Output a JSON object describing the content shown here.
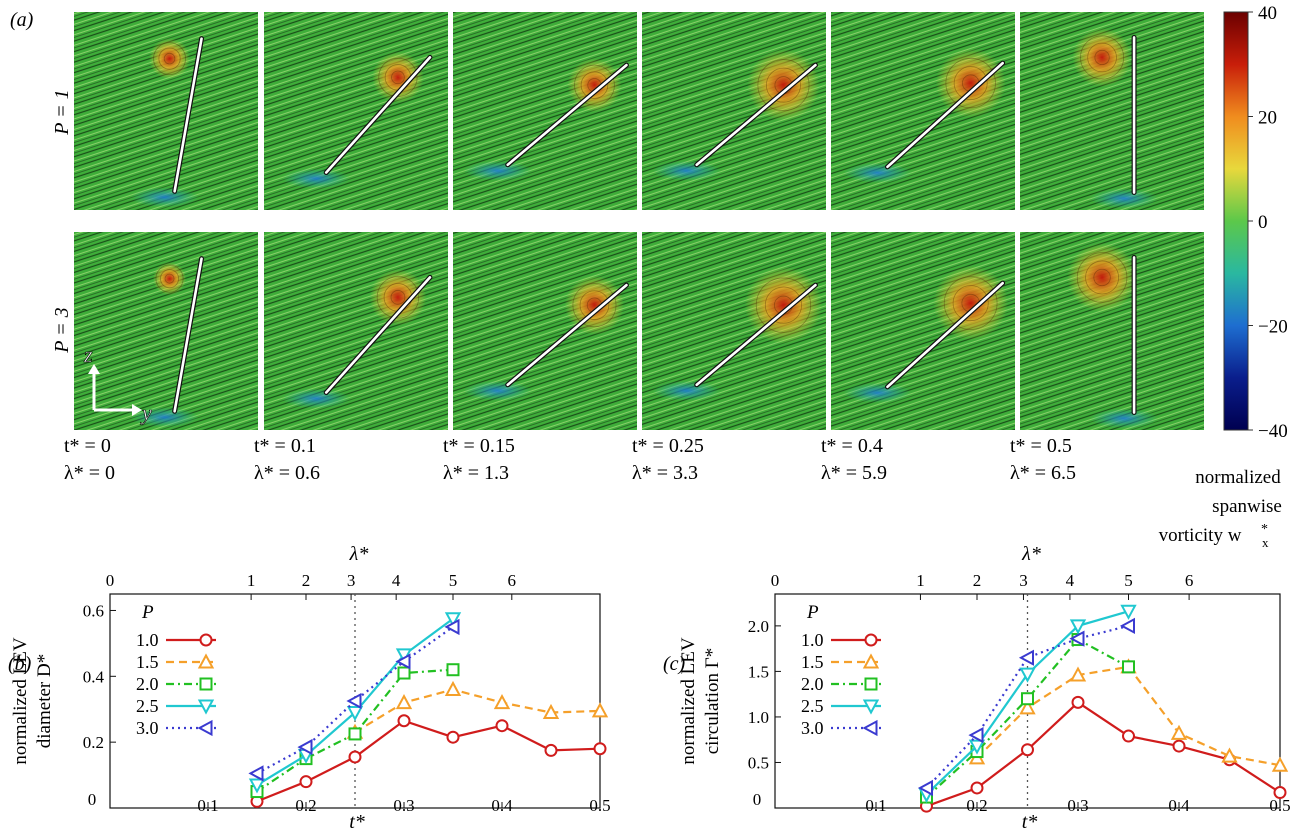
{
  "panel_a": {
    "label": "(a)",
    "row_labels": [
      "P = 1",
      "P = 3"
    ],
    "columns": [
      {
        "t": "t* = 0",
        "lambda": "λ* = 0",
        "angle_deg": 80,
        "p1_vortex": 0.25,
        "p3_vortex": 0.1
      },
      {
        "t": "t* = 0.1",
        "lambda": "λ* = 0.6",
        "angle_deg": 48,
        "p1_vortex": 0.45,
        "p3_vortex": 0.55
      },
      {
        "t": "t* = 0.15",
        "lambda": "λ* = 1.3",
        "angle_deg": 40,
        "p1_vortex": 0.5,
        "p3_vortex": 0.6
      },
      {
        "t": "t* = 0.25",
        "lambda": "λ* = 3.3",
        "angle_deg": 40,
        "p1_vortex": 0.85,
        "p3_vortex": 0.95
      },
      {
        "t": "t* = 0.4",
        "lambda": "λ* = 5.9",
        "angle_deg": 42,
        "p1_vortex": 0.8,
        "p3_vortex": 0.9
      },
      {
        "t": "t* = 0.5",
        "lambda": "λ* = 6.5",
        "angle_deg": 90,
        "p1_vortex": 0.6,
        "p3_vortex": 0.8
      }
    ],
    "axis_z": "z",
    "axis_y": "y",
    "colorbar": {
      "ticks": [
        40,
        20,
        0,
        -20,
        -40
      ],
      "tick_labels": [
        "40",
        "20",
        "0",
        "−20",
        "−40"
      ],
      "label_lines": [
        "normalized",
        "spanwise",
        "vorticity w",
        "x",
        "*"
      ],
      "colors": [
        "#6b0000",
        "#c81e0a",
        "#f08c1e",
        "#e8d83c",
        "#5cc84a",
        "#2ab8a0",
        "#1e6ed0",
        "#0a1e8c",
        "#000050"
      ]
    }
  },
  "chart_data": [
    {
      "type": "line",
      "label": "(b)",
      "xlabel": "t*",
      "ylabel_lines": [
        "normalized LEV",
        "diameter D*"
      ],
      "top_axis_label": "λ*",
      "xlim": [
        0,
        0.5
      ],
      "ylim": [
        0,
        0.65
      ],
      "xticks": [
        0,
        0.1,
        0.2,
        0.3,
        0.4,
        0.5
      ],
      "xtick_labels": [
        "0",
        "0.1",
        "0.2",
        "0.3",
        "0.4",
        "0.5"
      ],
      "yticks": [
        0.2,
        0.4,
        0.6
      ],
      "ytick_labels": [
        "0.2",
        "0.4",
        "0.6"
      ],
      "top_ticks": [
        {
          "t": 0.0,
          "label": "0"
        },
        {
          "t": 0.144,
          "label": "1"
        },
        {
          "t": 0.2,
          "label": "2"
        },
        {
          "t": 0.246,
          "label": "3"
        },
        {
          "t": 0.292,
          "label": "4"
        },
        {
          "t": 0.35,
          "label": "5"
        },
        {
          "t": 0.41,
          "label": "6"
        }
      ],
      "vline_t": 0.25,
      "legend_title": "P",
      "series": [
        {
          "name": "1.0",
          "color": "#d01c1c",
          "dash": "",
          "marker": "circle",
          "x": [
            0.15,
            0.2,
            0.25,
            0.3,
            0.35,
            0.4,
            0.45,
            0.5
          ],
          "y": [
            0.02,
            0.08,
            0.155,
            0.265,
            0.215,
            0.25,
            0.175,
            0.18
          ]
        },
        {
          "name": "1.5",
          "color": "#f5a02a",
          "dash": "8,5",
          "marker": "triangle-up",
          "x": [
            0.25,
            0.3,
            0.35,
            0.4,
            0.45,
            0.5
          ],
          "y": [
            0.23,
            0.32,
            0.36,
            0.32,
            0.29,
            0.295
          ]
        },
        {
          "name": "2.0",
          "color": "#22c022",
          "dash": "8,4,2,4",
          "marker": "square",
          "x": [
            0.15,
            0.2,
            0.25,
            0.3,
            0.35
          ],
          "y": [
            0.05,
            0.15,
            0.225,
            0.41,
            0.42
          ]
        },
        {
          "name": "2.5",
          "color": "#20c8d0",
          "dash": "",
          "marker": "triangle-down",
          "x": [
            0.15,
            0.2,
            0.25,
            0.3,
            0.35
          ],
          "y": [
            0.07,
            0.16,
            0.29,
            0.465,
            0.575
          ]
        },
        {
          "name": "3.0",
          "color": "#3a3ad0",
          "dash": "2,4",
          "marker": "triangle-left",
          "x": [
            0.15,
            0.2,
            0.25,
            0.3,
            0.35
          ],
          "y": [
            0.105,
            0.185,
            0.325,
            0.445,
            0.55
          ]
        }
      ]
    },
    {
      "type": "line",
      "label": "(c)",
      "xlabel": "t*",
      "ylabel_lines": [
        "normalized LEV",
        "circulation Γ*"
      ],
      "top_axis_label": "λ*",
      "xlim": [
        0,
        0.5
      ],
      "ylim": [
        0,
        2.35
      ],
      "xticks": [
        0,
        0.1,
        0.2,
        0.3,
        0.4,
        0.5
      ],
      "xtick_labels": [
        "0",
        "0.1",
        "0.2",
        "0.3",
        "0.4",
        "0.5"
      ],
      "yticks": [
        0.5,
        1.0,
        1.5,
        2.0
      ],
      "ytick_labels": [
        "0.5",
        "1.0",
        "1.5",
        "2.0"
      ],
      "top_ticks": [
        {
          "t": 0.0,
          "label": "0"
        },
        {
          "t": 0.144,
          "label": "1"
        },
        {
          "t": 0.2,
          "label": "2"
        },
        {
          "t": 0.246,
          "label": "3"
        },
        {
          "t": 0.292,
          "label": "4"
        },
        {
          "t": 0.35,
          "label": "5"
        },
        {
          "t": 0.41,
          "label": "6"
        }
      ],
      "vline_t": 0.25,
      "legend_title": "P",
      "series": [
        {
          "name": "1.0",
          "color": "#d01c1c",
          "dash": "",
          "marker": "circle",
          "x": [
            0.15,
            0.2,
            0.25,
            0.3,
            0.35,
            0.4,
            0.45,
            0.5
          ],
          "y": [
            0.02,
            0.22,
            0.64,
            1.16,
            0.79,
            0.68,
            0.53,
            0.17
          ]
        },
        {
          "name": "1.5",
          "color": "#f5a02a",
          "dash": "8,5",
          "marker": "triangle-up",
          "x": [
            0.2,
            0.25,
            0.3,
            0.35,
            0.4,
            0.45,
            0.5
          ],
          "y": [
            0.55,
            1.1,
            1.46,
            1.55,
            0.82,
            0.57,
            0.47
          ]
        },
        {
          "name": "2.0",
          "color": "#22c022",
          "dash": "8,4,2,4",
          "marker": "square",
          "x": [
            0.15,
            0.2,
            0.25,
            0.3,
            0.35
          ],
          "y": [
            0.12,
            0.62,
            1.2,
            1.85,
            1.55
          ]
        },
        {
          "name": "2.5",
          "color": "#20c8d0",
          "dash": "",
          "marker": "triangle-down",
          "x": [
            0.15,
            0.2,
            0.25,
            0.3,
            0.35
          ],
          "y": [
            0.15,
            0.68,
            1.47,
            2.0,
            2.16
          ]
        },
        {
          "name": "3.0",
          "color": "#3a3ad0",
          "dash": "2,4",
          "marker": "triangle-left",
          "x": [
            0.15,
            0.2,
            0.25,
            0.3,
            0.35
          ],
          "y": [
            0.22,
            0.8,
            1.65,
            1.86,
            2.0
          ]
        }
      ]
    }
  ]
}
